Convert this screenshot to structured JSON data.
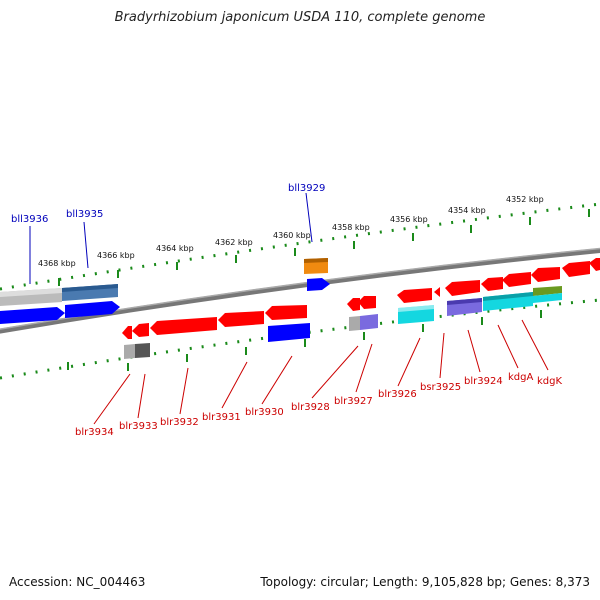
{
  "title": "Bradyrhizobium japonicum USDA 110, complete genome",
  "accession": "Accession: NC_004463",
  "summary": "Topology: circular; Length: 9,105,828 bp; Genes: 8,373",
  "colors": {
    "forward_gene": "#0000ff",
    "reverse_gene": "#ff0000",
    "backbone": "#777777",
    "tick": "#1a8a1a",
    "label_top": "#0000bb",
    "label_bottom": "#cc0000",
    "cyan": "#14d7e0",
    "purple": "#7a6adf",
    "orange": "#f08a10",
    "olive": "#6a9a20",
    "steel": "#4a7ab0",
    "gray": "#aaaaaa",
    "darkgray": "#555555"
  },
  "kbp_labels": [
    "4368 kbp",
    "4366 kbp",
    "4364 kbp",
    "4362 kbp",
    "4360 kbp",
    "4358 kbp",
    "4356 kbp",
    "4354 kbp",
    "4352 kbp"
  ],
  "top_gene_labels": [
    "bll3936",
    "bll3935",
    "bll3929"
  ],
  "bottom_gene_labels": [
    "blr3934",
    "blr3933",
    "blr3932",
    "blr3931",
    "blr3930",
    "blr3928",
    "blr3927",
    "blr3926",
    "bsr3925",
    "blr3924",
    "kdgA",
    "kdgK"
  ]
}
